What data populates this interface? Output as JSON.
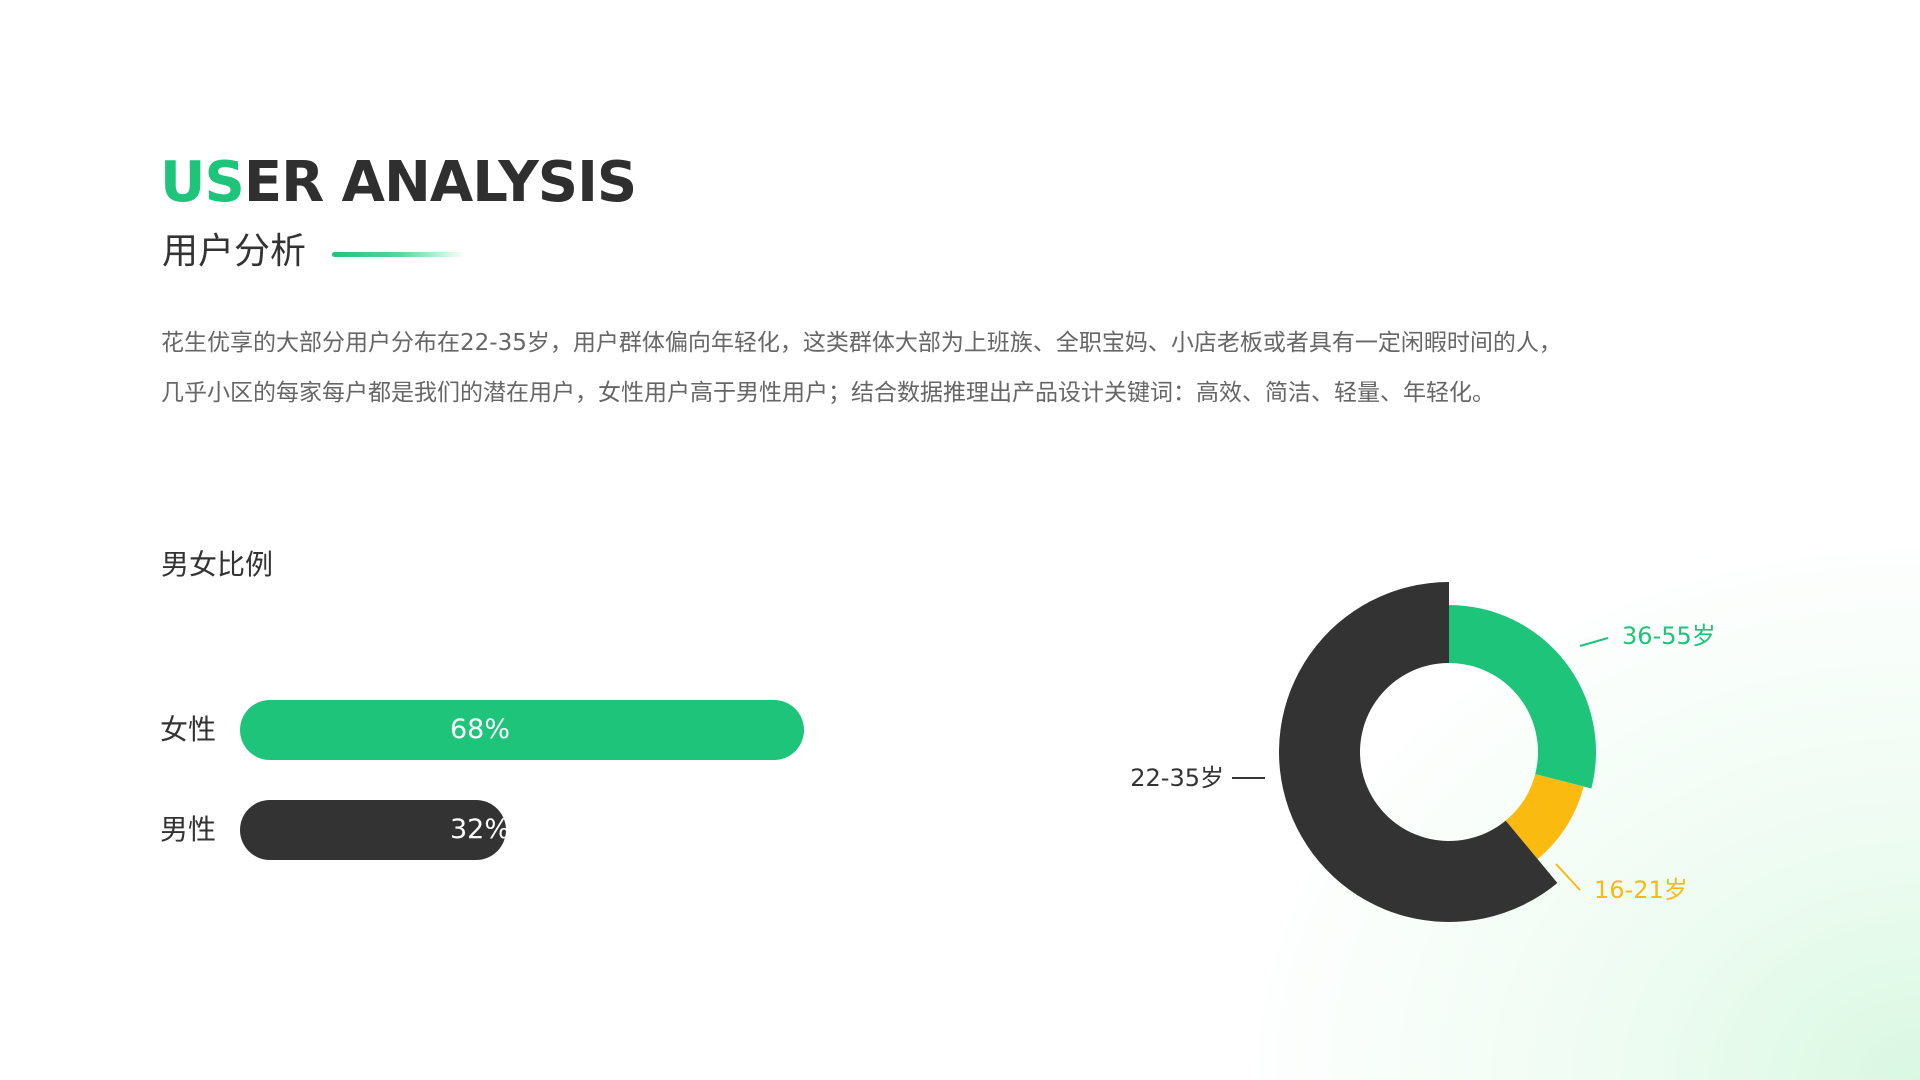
{
  "header": {
    "title_accent": "US",
    "title_rest": "ER ANALYSIS",
    "subtitle": "用户分析",
    "description_line1": "花生优享的大部分用户分布在22-35岁，用户群体偏向年轻化，这类群体大部为上班族、全职宝妈、小店老板或者具有一定闲暇时间的人，",
    "description_line2": "几乎小区的每家每户都是我们的潜在用户，女性用户高于男性用户；结合数据推理出产品设计关键词：高效、简洁、轻量、年轻化。"
  },
  "colors": {
    "green": "#1dc47a",
    "dark": "#333333",
    "yellow": "#fbba10"
  },
  "chart_data": [
    {
      "type": "bar",
      "title": "男女比例",
      "categories": [
        "女性",
        "男性"
      ],
      "values": [
        68,
        32
      ],
      "value_labels": [
        "68%",
        "32%"
      ],
      "colors": [
        "#1dc47a",
        "#333333"
      ]
    },
    {
      "type": "pie",
      "donut": true,
      "categories": [
        "36-55岁",
        "16-21岁",
        "22-35岁"
      ],
      "values": [
        29,
        10,
        61
      ],
      "colors": [
        "#1dc47a",
        "#fbba10",
        "#333333"
      ]
    }
  ]
}
